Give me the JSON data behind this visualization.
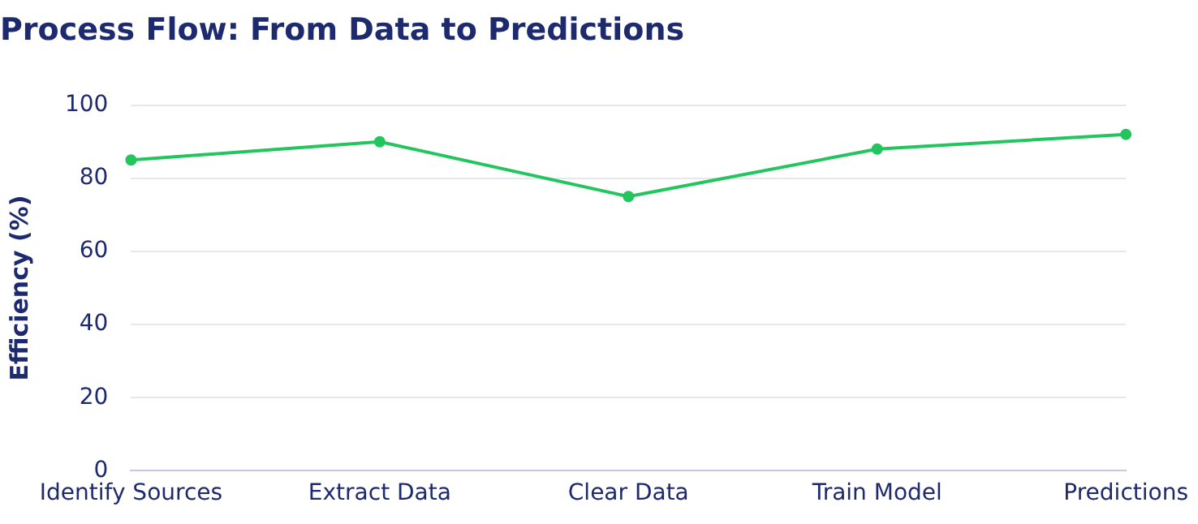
{
  "chart_data": {
    "type": "line",
    "title": "Process Flow: From Data to Predictions",
    "ylabel": "Efficiency (%)",
    "categories": [
      "Identify Sources",
      "Extract Data",
      "Clear Data",
      "Train Model",
      "Predictions"
    ],
    "series": [
      {
        "color": "#22c55e",
        "values": [
          85,
          90,
          75,
          88,
          92
        ]
      }
    ],
    "ylim": [
      0,
      100
    ],
    "yticks": [
      0,
      20,
      40,
      60,
      80,
      100
    ],
    "grid": "y",
    "marker": "circle",
    "line_style": "solid",
    "legend": false
  }
}
